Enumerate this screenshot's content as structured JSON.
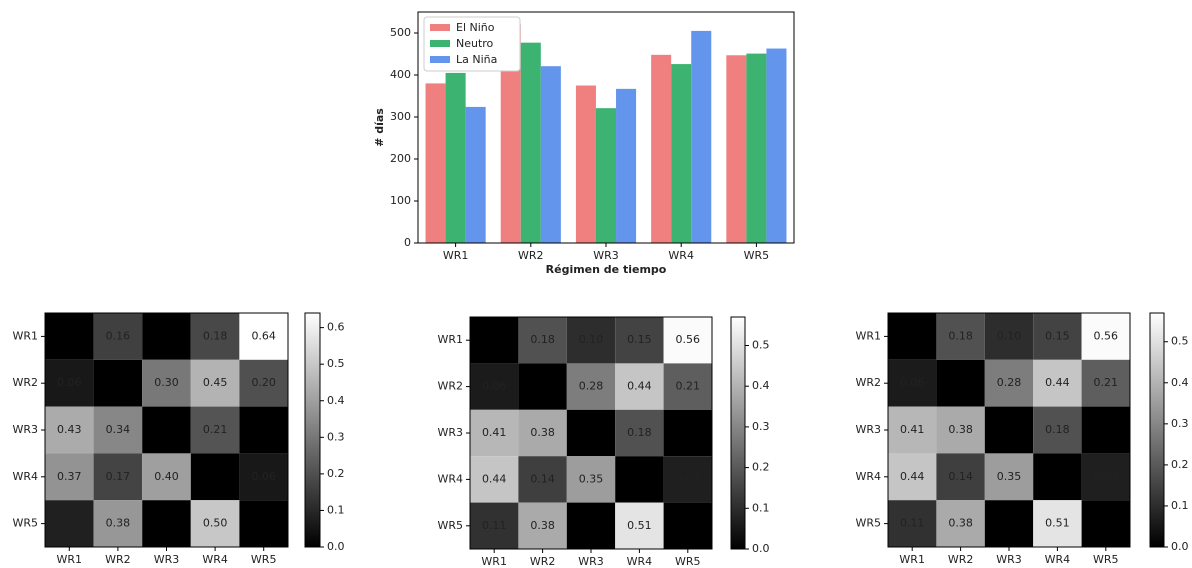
{
  "chart_data": [
    {
      "type": "bar",
      "xlabel": "Régimen de tiempo",
      "ylabel": "# días",
      "categories": [
        "WR1",
        "WR2",
        "WR3",
        "WR4",
        "WR5"
      ],
      "series": [
        {
          "name": "El Niño",
          "color": "#f08080",
          "values": [
            380,
            522,
            375,
            448,
            447
          ]
        },
        {
          "name": "Neutro",
          "color": "#3cb371",
          "values": [
            405,
            477,
            321,
            426,
            451
          ]
        },
        {
          "name": "La Niña",
          "color": "#6495ed",
          "values": [
            324,
            421,
            367,
            505,
            463
          ]
        }
      ],
      "ylim": [
        0,
        550
      ],
      "yticks": [
        0,
        100,
        200,
        300,
        400,
        500
      ],
      "legend": "upper-left"
    },
    {
      "type": "heatmap",
      "categories": [
        "WR1",
        "WR2",
        "WR3",
        "WR4",
        "WR5"
      ],
      "values": [
        [
          null,
          0.16,
          null,
          0.18,
          0.64
        ],
        [
          0.06,
          null,
          0.3,
          0.45,
          0.2
        ],
        [
          0.43,
          0.34,
          null,
          0.21,
          null
        ],
        [
          0.37,
          0.17,
          0.4,
          null,
          0.06
        ],
        [
          0.08,
          0.38,
          null,
          0.5,
          null
        ]
      ],
      "value_labels": [
        [
          null,
          "0.16",
          null,
          "0.18",
          "0.64"
        ],
        [
          "0.06",
          null,
          "0.30",
          "0.45",
          "0.20"
        ],
        [
          "0.43",
          "0.34",
          null,
          "0.21",
          null
        ],
        [
          "0.37",
          "0.17",
          "0.40",
          null,
          "0.06"
        ],
        [
          "0.08",
          "0.38",
          null,
          "0.50",
          null
        ]
      ],
      "colormap": "gray",
      "clim": [
        0,
        0.64
      ],
      "cticks": [
        {
          "value": 0,
          "label": "0.0"
        },
        0.1,
        0.2,
        0.3,
        0.4,
        0.5,
        0.6
      ]
    },
    {
      "type": "heatmap",
      "categories": [
        "WR1",
        "WR2",
        "WR3",
        "WR4",
        "WR5"
      ],
      "values": [
        [
          null,
          0.18,
          0.1,
          0.15,
          0.56
        ],
        [
          0.06,
          null,
          0.28,
          0.44,
          0.21
        ],
        [
          0.41,
          0.38,
          null,
          0.18,
          null
        ],
        [
          0.44,
          0.14,
          0.35,
          null,
          0.07
        ],
        [
          0.11,
          0.38,
          null,
          0.51,
          null
        ]
      ],
      "value_labels": [
        [
          null,
          "0.18",
          "0.10",
          "0.15",
          "0.56"
        ],
        [
          "0.06",
          null,
          "0.28",
          "0.44",
          "0.21"
        ],
        [
          "0.41",
          "0.38",
          null,
          "0.18",
          null
        ],
        [
          "0.44",
          "0.14",
          "0.35",
          null,
          "0.07"
        ],
        [
          "0.11",
          "0.38",
          null,
          "0.51",
          null
        ]
      ],
      "colormap": "gray",
      "clim": [
        0,
        0.57
      ],
      "cticks": [
        {
          "value": 0,
          "label": "0.0"
        },
        0.1,
        0.2,
        0.3,
        0.4,
        0.5
      ]
    },
    {
      "type": "heatmap",
      "categories": [
        "WR1",
        "WR2",
        "WR3",
        "WR4",
        "WR5"
      ],
      "values": [
        [
          null,
          0.18,
          0.1,
          0.15,
          0.56
        ],
        [
          0.06,
          null,
          0.28,
          0.44,
          0.21
        ],
        [
          0.41,
          0.38,
          null,
          0.18,
          null
        ],
        [
          0.44,
          0.14,
          0.35,
          null,
          0.07
        ],
        [
          0.11,
          0.38,
          null,
          0.51,
          null
        ]
      ],
      "value_labels": [
        [
          null,
          "0.18",
          "0.10",
          "0.15",
          "0.56"
        ],
        [
          "0.06",
          null,
          "0.28",
          "0.44",
          "0.21"
        ],
        [
          "0.41",
          "0.38",
          null,
          "0.18",
          null
        ],
        [
          "0.44",
          "0.14",
          "0.35",
          null,
          "0.07"
        ],
        [
          "0.11",
          "0.38",
          null,
          "0.51",
          null
        ]
      ],
      "colormap": "gray",
      "clim": [
        0,
        0.57
      ],
      "cticks": [
        {
          "value": 0,
          "label": "0.0"
        },
        0.1,
        0.2,
        0.3,
        0.4,
        0.5
      ]
    }
  ]
}
